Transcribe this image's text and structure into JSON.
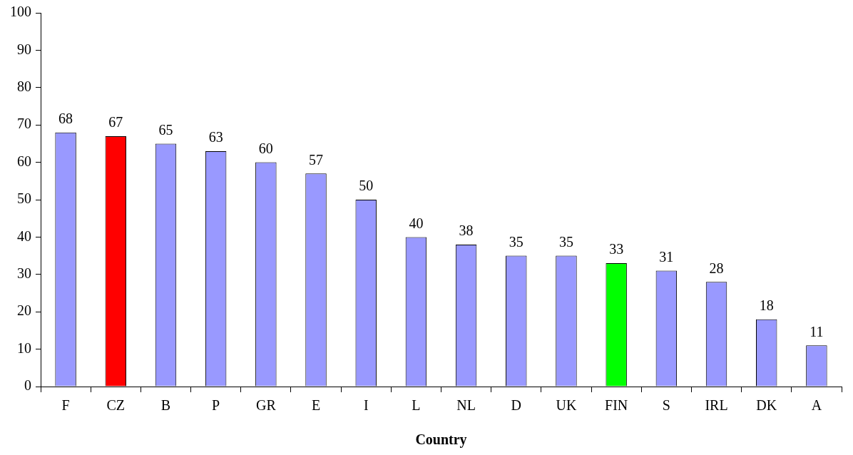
{
  "chart_data": {
    "type": "bar",
    "xlabel": "Country",
    "categories": [
      "F",
      "CZ",
      "B",
      "P",
      "GR",
      "E",
      "I",
      "L",
      "NL",
      "D",
      "UK",
      "FIN",
      "S",
      "IRL",
      "DK",
      "A"
    ],
    "values": [
      68,
      67,
      65,
      63,
      60,
      57,
      50,
      40,
      38,
      35,
      35,
      33,
      31,
      28,
      18,
      11
    ],
    "colors": [
      "#9999ff",
      "#ff0000",
      "#9999ff",
      "#9999ff",
      "#9999ff",
      "#9999ff",
      "#9999ff",
      "#9999ff",
      "#9999ff",
      "#9999ff",
      "#9999ff",
      "#00ff00",
      "#9999ff",
      "#9999ff",
      "#9999ff",
      "#9999ff"
    ],
    "ylim": [
      0,
      100
    ],
    "yticks": [
      0,
      10,
      20,
      30,
      40,
      50,
      60,
      70,
      80,
      90,
      100
    ],
    "grid": false,
    "legend": false,
    "data_labels": true
  }
}
